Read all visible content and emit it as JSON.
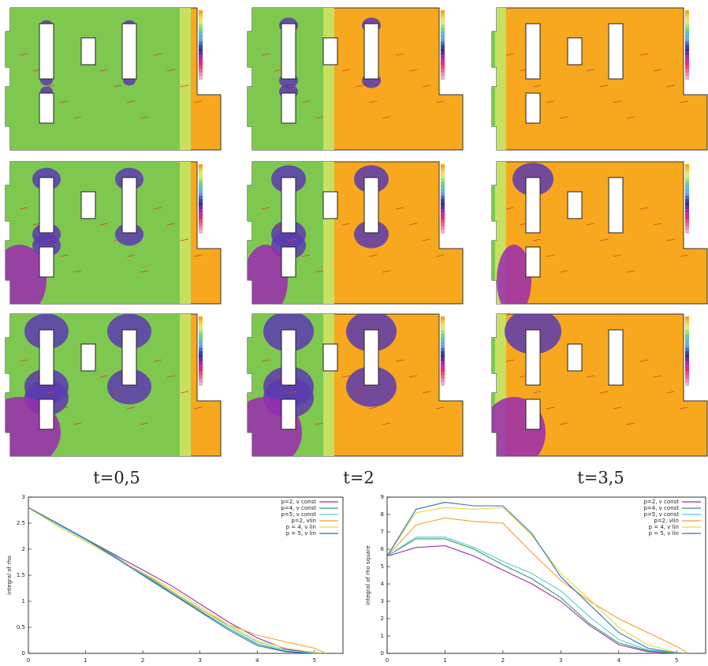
{
  "figure": {
    "captions": [
      "t=0,5",
      "t=2",
      "t=3,5"
    ]
  },
  "chart_data": [
    {
      "type": "line",
      "y_label": "integral of rho",
      "x": [
        0,
        0.5,
        1,
        1.5,
        2,
        2.5,
        3,
        3.5,
        4,
        4.5,
        5,
        5.2
      ],
      "xlim": [
        0,
        5.5
      ],
      "xticks": [
        0,
        1,
        2,
        3,
        4,
        5
      ],
      "ylim": [
        0,
        3
      ],
      "yticks": [
        0,
        0.5,
        1,
        1.5,
        2,
        2.5,
        3
      ],
      "series": [
        {
          "name": "p=2, v const",
          "color": "#9b2fae",
          "values": [
            2.8,
            2.5,
            2.2,
            1.9,
            1.6,
            1.3,
            0.95,
            0.6,
            0.3,
            0.08,
            0.01,
            0
          ]
        },
        {
          "name": "p=4, v const",
          "color": "#2fa05a",
          "values": [
            2.8,
            2.5,
            2.2,
            1.88,
            1.52,
            1.17,
            0.82,
            0.48,
            0.18,
            0.04,
            0,
            0
          ]
        },
        {
          "name": "p=5, v const",
          "color": "#5bc8e0",
          "values": [
            2.8,
            2.48,
            2.18,
            1.87,
            1.53,
            1.2,
            0.86,
            0.52,
            0.22,
            0.06,
            0.01,
            0
          ]
        },
        {
          "name": "p=2, vlin",
          "color": "#f0a030",
          "values": [
            2.8,
            2.45,
            2.15,
            1.85,
            1.55,
            1.2,
            0.85,
            0.55,
            0.35,
            0.22,
            0.1,
            0
          ]
        },
        {
          "name": "p = 4, v lin",
          "color": "#e8d840",
          "values": [
            2.8,
            2.45,
            2.15,
            1.85,
            1.55,
            1.25,
            0.9,
            0.55,
            0.25,
            0.1,
            0.02,
            0
          ]
        },
        {
          "name": "p = 5, v lin",
          "color": "#2a70b8",
          "values": [
            2.8,
            2.5,
            2.2,
            1.85,
            1.5,
            1.15,
            0.8,
            0.45,
            0.15,
            0.03,
            0,
            0
          ]
        }
      ]
    },
    {
      "type": "line",
      "y_label": "integral of rho square",
      "x": [
        0,
        0.5,
        1,
        1.5,
        2,
        2.5,
        3,
        3.5,
        4,
        4.5,
        5,
        5.2
      ],
      "xlim": [
        0,
        5.5
      ],
      "xticks": [
        0,
        1,
        2,
        3,
        4,
        5
      ],
      "ylim": [
        0,
        9
      ],
      "yticks": [
        0,
        1,
        2,
        3,
        4,
        5,
        6,
        7,
        8,
        9
      ],
      "series": [
        {
          "name": "p=2, v const",
          "color": "#9b2fae",
          "values": [
            5.6,
            6.1,
            6.2,
            5.6,
            4.8,
            4.0,
            3.0,
            1.6,
            0.5,
            0.1,
            0,
            0
          ]
        },
        {
          "name": "p=4, v const",
          "color": "#2fa05a",
          "values": [
            5.6,
            6.6,
            6.6,
            6.0,
            5.1,
            4.3,
            3.2,
            1.7,
            0.6,
            0.15,
            0,
            0
          ]
        },
        {
          "name": "p=5, v const",
          "color": "#5bc8e0",
          "values": [
            5.6,
            6.7,
            6.7,
            6.1,
            5.3,
            4.6,
            3.6,
            2.1,
            0.8,
            0.2,
            0.02,
            0
          ]
        },
        {
          "name": "p=2, vlin",
          "color": "#f0a030",
          "values": [
            5.6,
            7.4,
            7.8,
            7.6,
            7.5,
            5.8,
            4.2,
            3.0,
            2.0,
            1.2,
            0.4,
            0
          ]
        },
        {
          "name": "p = 4, v lin",
          "color": "#e8d840",
          "values": [
            5.6,
            8.1,
            8.4,
            8.3,
            8.4,
            6.8,
            4.6,
            3.1,
            1.5,
            0.5,
            0.05,
            0
          ]
        },
        {
          "name": "p = 5, v lin",
          "color": "#2a70b8",
          "values": [
            5.6,
            8.3,
            8.7,
            8.5,
            8.5,
            6.9,
            4.4,
            2.8,
            1.2,
            0.3,
            0.02,
            0
          ]
        }
      ]
    }
  ]
}
